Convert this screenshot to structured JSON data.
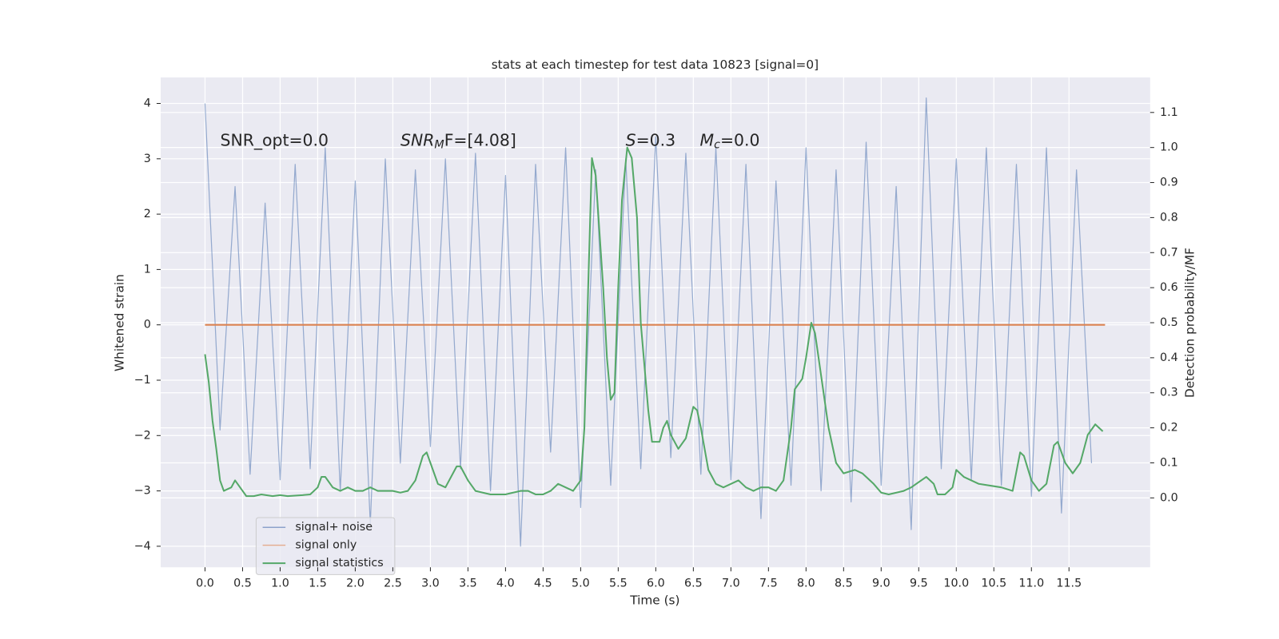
{
  "chart_data": {
    "type": "line",
    "title": "stats at each timestep for test data 10823 [signal=0]",
    "xlabel": "Time (s)",
    "ylabel": "Whitened strain",
    "y2label": "Detection probability/MF",
    "xlim": [
      -0.59,
      12.58
    ],
    "ylim": [
      -4.38,
      4.47
    ],
    "y2lim": [
      -0.198,
      1.2
    ],
    "xticks": [
      {
        "value": 0,
        "label": "0.0"
      },
      0.5,
      {
        "value": 1,
        "label": "1.0"
      },
      1.5,
      {
        "value": 2,
        "label": "2.0"
      },
      2.5,
      {
        "value": 3,
        "label": "3.0"
      },
      3.5,
      {
        "value": 4,
        "label": "4.0"
      },
      4.5,
      {
        "value": 5,
        "label": "5.0"
      },
      5.5,
      {
        "value": 6,
        "label": "6.0"
      },
      6.5,
      {
        "value": 7,
        "label": "7.0"
      },
      7.5,
      {
        "value": 8,
        "label": "8.0"
      },
      8.5,
      {
        "value": 9,
        "label": "9.0"
      },
      9.5,
      {
        "value": 10,
        "label": "10.0"
      },
      10.5,
      {
        "value": 11,
        "label": "11.0"
      },
      11.5
    ],
    "yticks": [
      {
        "value": -4,
        "label": "−4"
      },
      {
        "value": -3,
        "label": "−3"
      },
      {
        "value": -2,
        "label": "−2"
      },
      {
        "value": -1,
        "label": "−1"
      },
      0,
      1,
      2,
      3,
      4
    ],
    "y2ticks": [
      {
        "value": 0,
        "label": "0.0"
      },
      0.1,
      0.2,
      0.3,
      0.4,
      0.5,
      0.6,
      0.7,
      0.8,
      0.9,
      {
        "value": 1,
        "label": "1.0"
      },
      1.1
    ],
    "grid": true,
    "legend_loc": "lower left",
    "annotations": [
      {
        "text": "SNR_opt=0.0"
      },
      {
        "text": "SNR",
        "sub": "M",
        "after": "F=[4.08]"
      },
      {
        "text": "S",
        "after": "=0.3"
      },
      {
        "text": "M",
        "sub": "c",
        "after": "=0.0"
      }
    ],
    "series": [
      {
        "name": "signal+ noise",
        "color": "#4c72b0",
        "axis": "y",
        "x": [
          0,
          0.2,
          0.4,
          0.6,
          0.8,
          1,
          1.2,
          1.4,
          1.6,
          1.8,
          2,
          2.2,
          2.4,
          2.6,
          2.8,
          3,
          3.2,
          3.4,
          3.6,
          3.8,
          4,
          4.2,
          4.4,
          4.6,
          4.8,
          5,
          5.2,
          5.4,
          5.6,
          5.8,
          6,
          6.2,
          6.4,
          6.6,
          6.8,
          7,
          7.2,
          7.4,
          7.6,
          7.8,
          8,
          8.2,
          8.4,
          8.6,
          8.8,
          9,
          9.2,
          9.4,
          9.6,
          9.8,
          10,
          10.2,
          10.4,
          10.6,
          10.8,
          11,
          11.2,
          11.4,
          11.6,
          11.8
        ],
        "values": [
          4.0,
          -1.9,
          2.5,
          -2.7,
          2.2,
          -2.8,
          2.9,
          -2.6,
          3.2,
          -3.0,
          2.6,
          -3.6,
          3.0,
          -2.5,
          2.8,
          -2.2,
          3.0,
          -2.6,
          3.1,
          -3.0,
          2.7,
          -4.0,
          2.9,
          -2.3,
          3.2,
          -3.3,
          2.8,
          -2.9,
          3.0,
          -2.6,
          3.4,
          -2.4,
          3.1,
          -2.7,
          3.2,
          -2.8,
          2.9,
          -3.5,
          2.6,
          -2.9,
          3.2,
          -3.0,
          2.8,
          -3.2,
          3.3,
          -2.9,
          2.5,
          -3.7,
          4.1,
          -2.6,
          3.0,
          -2.8,
          3.2,
          -2.9,
          2.9,
          -3.1,
          3.2,
          -3.4,
          2.8,
          -2.5
        ]
      },
      {
        "name": "signal only",
        "color": "#dd8452",
        "axis": "y",
        "x": [
          0,
          11.98
        ],
        "values": [
          0,
          0
        ]
      },
      {
        "name": "signal statistics",
        "color": "#55a868",
        "axis": "y2",
        "x": [
          0,
          0.05,
          0.1,
          0.15,
          0.2,
          0.25,
          0.35,
          0.4,
          0.5,
          0.55,
          0.65,
          0.75,
          0.9,
          1,
          1.1,
          1.3,
          1.4,
          1.5,
          1.55,
          1.6,
          1.7,
          1.8,
          1.9,
          2,
          2.1,
          2.2,
          2.3,
          2.5,
          2.6,
          2.7,
          2.8,
          2.9,
          2.95,
          3,
          3.1,
          3.2,
          3.35,
          3.4,
          3.5,
          3.6,
          3.8,
          4,
          4.2,
          4.3,
          4.4,
          4.5,
          4.6,
          4.7,
          4.8,
          4.9,
          5,
          5.05,
          5.1,
          5.15,
          5.2,
          5.3,
          5.35,
          5.4,
          5.45,
          5.5,
          5.55,
          5.62,
          5.68,
          5.75,
          5.8,
          5.9,
          5.95,
          6.05,
          6.1,
          6.15,
          6.2,
          6.3,
          6.4,
          6.5,
          6.55,
          6.6,
          6.7,
          6.8,
          6.9,
          7,
          7.1,
          7.2,
          7.3,
          7.4,
          7.5,
          7.6,
          7.7,
          7.8,
          7.85,
          7.95,
          8,
          8.07,
          8.12,
          8.2,
          8.3,
          8.4,
          8.5,
          8.65,
          8.75,
          8.9,
          9,
          9.1,
          9.3,
          9.4,
          9.6,
          9.7,
          9.75,
          9.85,
          9.95,
          10,
          10.1,
          10.3,
          10.6,
          10.75,
          10.85,
          10.9,
          11,
          11.1,
          11.2,
          11.3,
          11.35,
          11.45,
          11.55,
          11.65,
          11.75,
          11.85,
          11.95
        ],
        "values": [
          0.41,
          0.33,
          0.22,
          0.14,
          0.05,
          0.02,
          0.03,
          0.05,
          0.02,
          0.005,
          0.005,
          0.01,
          0.005,
          0.008,
          0.005,
          0.008,
          0.01,
          0.03,
          0.06,
          0.06,
          0.03,
          0.02,
          0.03,
          0.02,
          0.02,
          0.03,
          0.02,
          0.02,
          0.015,
          0.02,
          0.05,
          0.12,
          0.13,
          0.1,
          0.04,
          0.03,
          0.09,
          0.09,
          0.05,
          0.02,
          0.01,
          0.01,
          0.02,
          0.02,
          0.01,
          0.01,
          0.02,
          0.04,
          0.03,
          0.02,
          0.05,
          0.2,
          0.6,
          0.97,
          0.92,
          0.6,
          0.4,
          0.28,
          0.3,
          0.6,
          0.85,
          1.0,
          0.97,
          0.8,
          0.5,
          0.25,
          0.16,
          0.16,
          0.2,
          0.22,
          0.18,
          0.14,
          0.17,
          0.26,
          0.25,
          0.2,
          0.08,
          0.04,
          0.03,
          0.04,
          0.05,
          0.03,
          0.02,
          0.03,
          0.03,
          0.02,
          0.05,
          0.2,
          0.31,
          0.34,
          0.4,
          0.5,
          0.47,
          0.35,
          0.2,
          0.1,
          0.07,
          0.08,
          0.07,
          0.04,
          0.015,
          0.01,
          0.02,
          0.03,
          0.06,
          0.04,
          0.01,
          0.01,
          0.03,
          0.08,
          0.06,
          0.04,
          0.03,
          0.02,
          0.13,
          0.12,
          0.05,
          0.02,
          0.04,
          0.15,
          0.16,
          0.1,
          0.07,
          0.1,
          0.18,
          0.21,
          0.19
        ]
      }
    ]
  }
}
